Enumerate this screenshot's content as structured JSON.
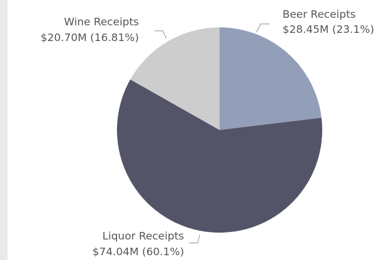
{
  "chart_data": {
    "type": "pie",
    "title": "",
    "slices": [
      {
        "name": "Beer Receipts",
        "value_label": "$28.45M (23.1%)",
        "value_musd": 28.45,
        "percent": 23.1,
        "color": "#939fb9"
      },
      {
        "name": "Liquor Receipts",
        "value_label": "$74.04M (60.1%)",
        "value_musd": 74.04,
        "percent": 60.1,
        "color": "#535467"
      },
      {
        "name": "Wine Receipts",
        "value_label": "$20.70M (16.81%)",
        "value_musd": 20.7,
        "percent": 16.81,
        "color": "#cdcdcd"
      }
    ],
    "start_angle": "12 o'clock",
    "direction": "clockwise"
  }
}
